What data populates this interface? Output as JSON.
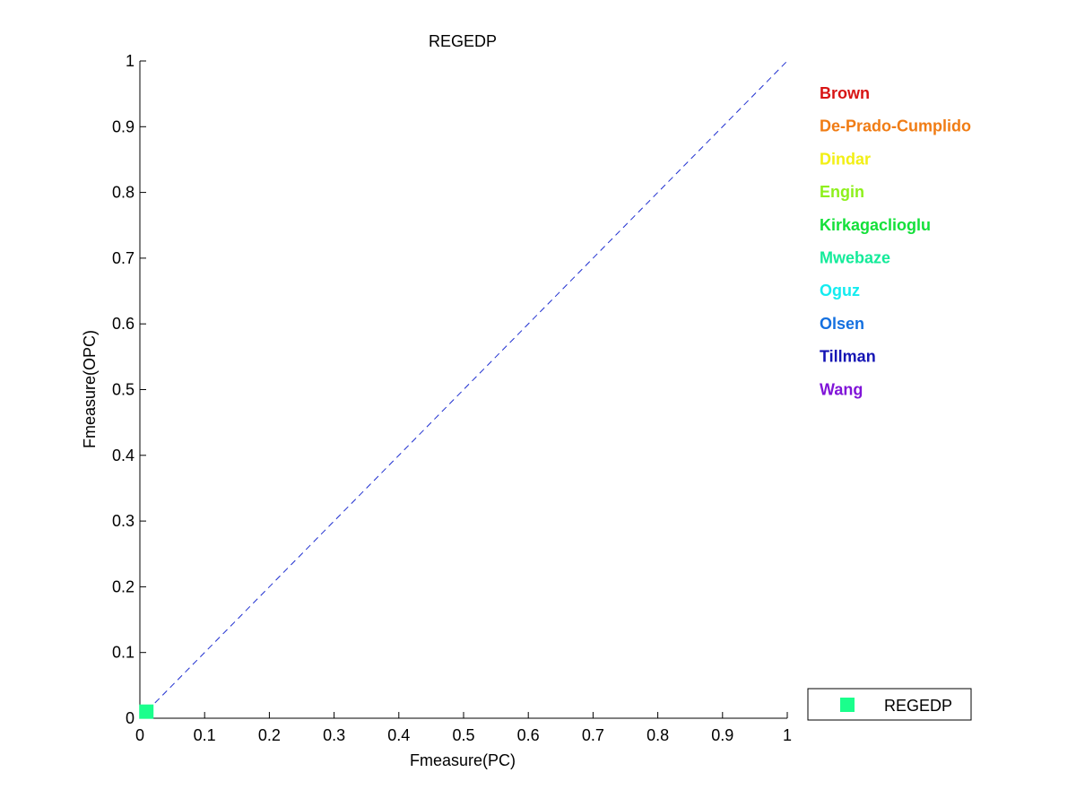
{
  "chart_data": {
    "type": "scatter",
    "title": "REGEDP",
    "xlabel": "Fmeasure(PC)",
    "ylabel": "Fmeasure(OPC)",
    "xlim": [
      0,
      1
    ],
    "ylim": [
      0,
      1
    ],
    "x_ticks": [
      "0",
      "0.1",
      "0.2",
      "0.3",
      "0.4",
      "0.5",
      "0.6",
      "0.7",
      "0.8",
      "0.9",
      "1"
    ],
    "y_ticks": [
      "0",
      "0.1",
      "0.2",
      "0.3",
      "0.4",
      "0.5",
      "0.6",
      "0.7",
      "0.8",
      "0.9",
      "1"
    ],
    "grid": false,
    "reference_line": {
      "from": [
        0,
        0
      ],
      "to": [
        1,
        1
      ],
      "style": "dashed",
      "color": "#1f2fd0"
    },
    "series": [
      {
        "name": "REGEDP",
        "marker": "square",
        "color": "#1aff8c",
        "points": [
          {
            "x": 0.01,
            "y": 0.01
          }
        ]
      }
    ],
    "legend": {
      "placement": "bottom-right, outside plot",
      "entries": [
        {
          "label": "REGEDP",
          "color": "#1aff8c",
          "marker": "square"
        }
      ]
    },
    "annotations": [
      {
        "text": "Brown",
        "color": "#d81414"
      },
      {
        "text": "De-Prado-Cumplido",
        "color": "#f07c14"
      },
      {
        "text": "Dindar",
        "color": "#f2ef14"
      },
      {
        "text": "Engin",
        "color": "#8ef01c"
      },
      {
        "text": "Kirkagaclioglu",
        "color": "#14e03a"
      },
      {
        "text": "Mwebaze",
        "color": "#14eb9a"
      },
      {
        "text": "Oguz",
        "color": "#14ecf0"
      },
      {
        "text": "Olsen",
        "color": "#1470e0"
      },
      {
        "text": "Tillman",
        "color": "#1414b4"
      },
      {
        "text": "Wang",
        "color": "#8014d8"
      }
    ]
  }
}
